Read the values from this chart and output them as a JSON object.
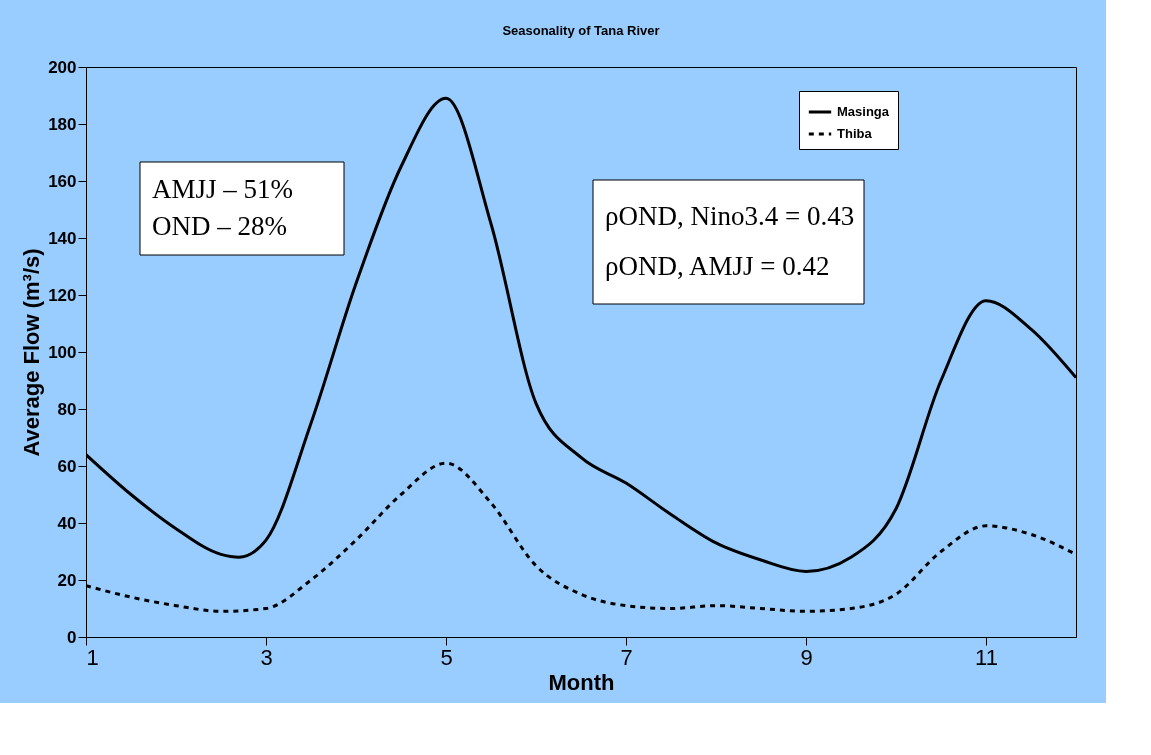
{
  "chart_data": {
    "type": "line",
    "title": "Seasonality of Tana River",
    "xlabel": "Month",
    "ylabel": "Average Flow (m³/s)",
    "xlim": [
      1,
      12
    ],
    "xticks": [
      1,
      3,
      5,
      7,
      9,
      11
    ],
    "ylim": [
      0,
      200
    ],
    "yticks": [
      0,
      20,
      40,
      60,
      80,
      100,
      120,
      140,
      160,
      180,
      200
    ],
    "grid": false,
    "legend": "top right",
    "marker": "none",
    "annotations": [
      "AMJJ – 51%",
      "OND – 28%",
      "ρOND, Nino3.4 = 0.43",
      "ρOND, AMJJ = 0.42"
    ],
    "series": [
      {
        "name": "Masinga",
        "color": "#000000",
        "line_style": "solid",
        "x": [
          1,
          1.5,
          2,
          2.5,
          2.7,
          3,
          3.5,
          4,
          4.5,
          5,
          5.5,
          6,
          6.5,
          7,
          7.5,
          8,
          8.5,
          9,
          9.5,
          10,
          10.5,
          11,
          11.5,
          12
        ],
        "values": [
          64,
          50,
          38,
          29,
          28,
          34,
          75,
          124,
          165,
          189,
          145,
          82,
          63,
          54,
          43,
          33,
          27,
          23,
          28,
          45,
          90,
          118,
          108,
          91
        ]
      },
      {
        "name": "Thiba",
        "color": "#000000",
        "line_style": "dashed",
        "x": [
          1,
          1.5,
          2,
          2.5,
          3,
          3.5,
          4,
          4.5,
          5,
          5.5,
          6,
          6.5,
          7,
          7.5,
          8,
          8.5,
          9,
          9.5,
          10,
          10.5,
          11,
          11.5,
          12
        ],
        "values": [
          18,
          14,
          11,
          9,
          10,
          20,
          34,
          50,
          61,
          47,
          25,
          15,
          11,
          10,
          11,
          10,
          9,
          10,
          15,
          30,
          39,
          36,
          29
        ]
      }
    ]
  }
}
